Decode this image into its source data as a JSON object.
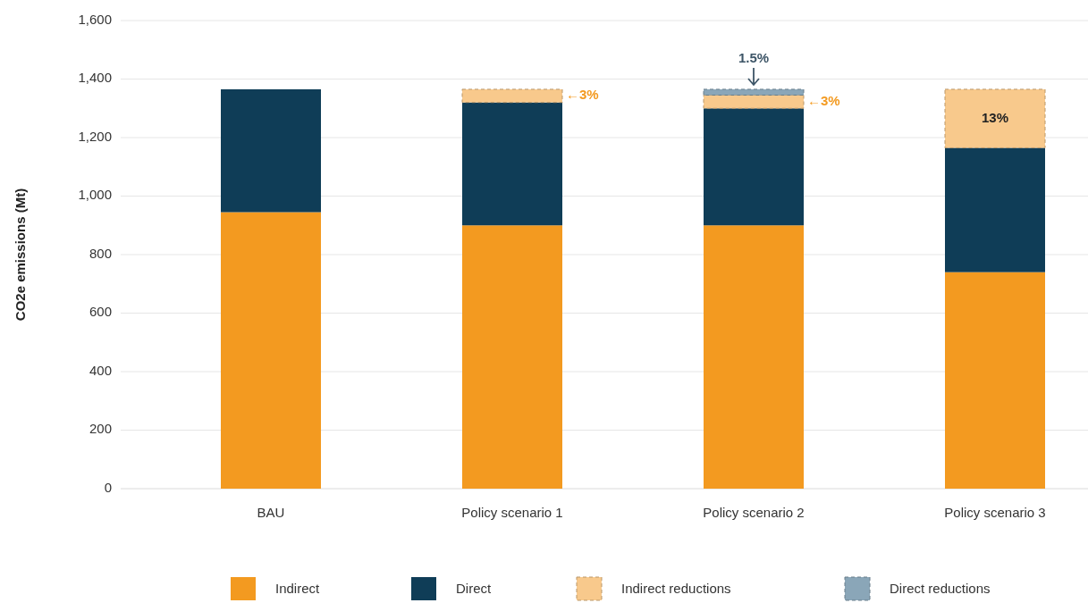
{
  "chart_data": {
    "type": "bar",
    "stacked": true,
    "ylabel": "CO2e emissions (Mt)",
    "categories": [
      "BAU",
      "Policy scenario 1",
      "Policy scenario 2",
      "Policy scenario 3"
    ],
    "series": [
      {
        "name": "Indirect",
        "color": "#f39a20",
        "values": [
          945,
          900,
          900,
          740
        ]
      },
      {
        "name": "Direct",
        "color": "#0f3d57",
        "values": [
          420,
          420,
          400,
          425
        ]
      },
      {
        "name": "Indirect reductions",
        "color": "#f8c98c",
        "line_style": "dashed",
        "values": [
          null,
          45,
          45,
          200
        ]
      },
      {
        "name": "Direct reductions",
        "color": "#8aa6b8",
        "line_style": "dashed",
        "values": [
          null,
          null,
          20,
          null
        ]
      }
    ],
    "ylim": [
      0,
      1600
    ],
    "yticks": [
      {
        "value": 0,
        "label": "0"
      },
      {
        "value": 200,
        "label": "200"
      },
      {
        "value": 400,
        "label": "400"
      },
      {
        "value": 600,
        "label": "600"
      },
      {
        "value": 800,
        "label": "800"
      },
      {
        "value": 1000,
        "label": "1,000"
      },
      {
        "value": 1200,
        "label": "1,200"
      },
      {
        "value": 1400,
        "label": "1,400"
      },
      {
        "value": 1600,
        "label": "1,600"
      }
    ],
    "grid": "y",
    "legend": "bottom",
    "annotations": [
      "←3%",
      "←3%",
      "1.5%",
      "13%"
    ]
  }
}
